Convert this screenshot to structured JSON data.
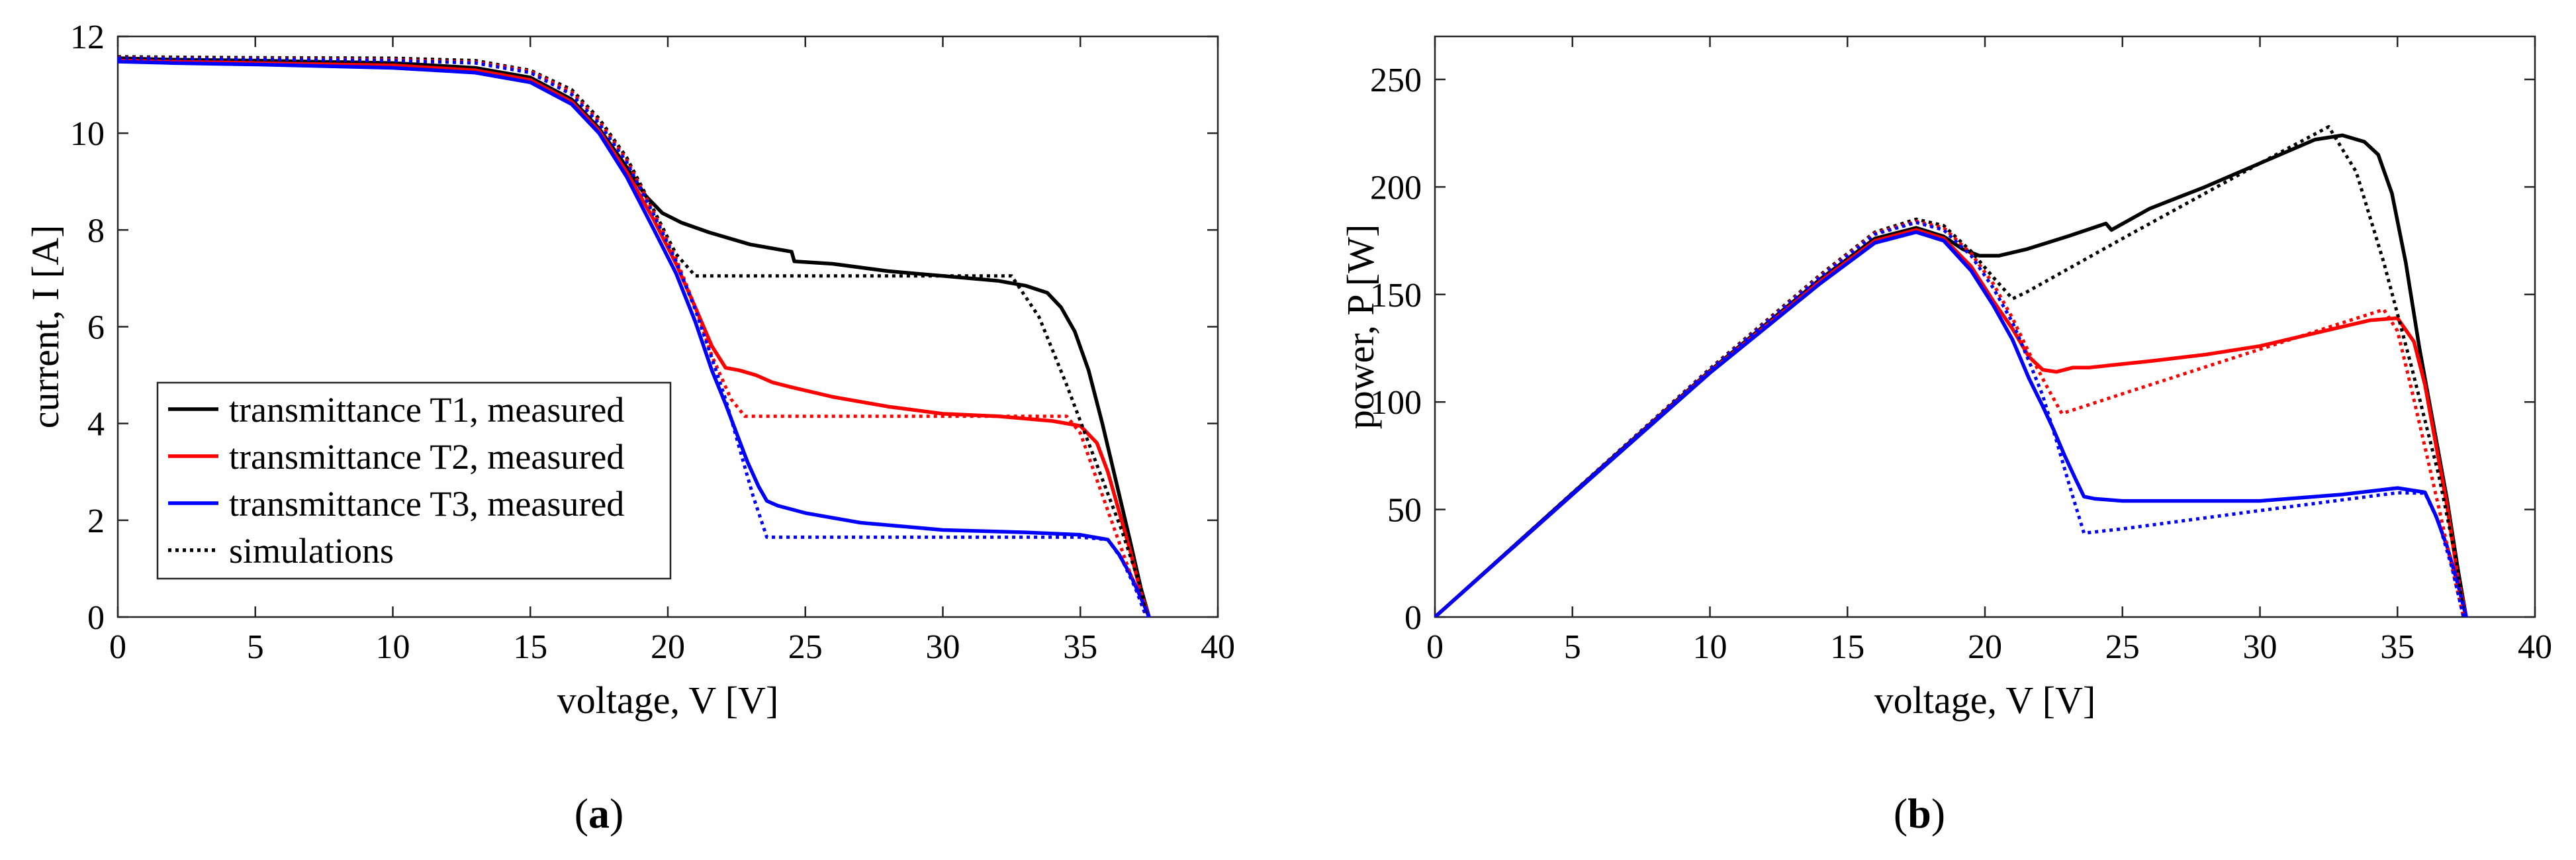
{
  "chart_data": [
    {
      "type": "line",
      "panel": "(a)",
      "panel_letter": "a",
      "xlabel": "voltage, V [V]",
      "ylabel": "current, I [A]",
      "xlim": [
        0,
        40
      ],
      "ylim": [
        0,
        12
      ],
      "xticks": [
        0,
        5,
        10,
        15,
        20,
        25,
        30,
        35,
        40
      ],
      "yticks": [
        0,
        2,
        4,
        6,
        8,
        10,
        12
      ],
      "grid": false,
      "legend_position": "lower-left",
      "legend": [
        {
          "label": "transmittance T1, measured",
          "color": "#000000",
          "style": "solid"
        },
        {
          "label": "transmittance T2, measured",
          "color": "#ff0000",
          "style": "solid"
        },
        {
          "label": "transmittance T3, measured",
          "color": "#0000ff",
          "style": "solid"
        },
        {
          "label": "simulations",
          "color": "#000000",
          "style": "dotted"
        }
      ],
      "series": [
        {
          "name": "transmittance T1, measured",
          "color": "#000000",
          "style": "solid",
          "x": [
            0,
            2,
            5,
            10,
            13,
            15,
            16.5,
            17.5,
            18.5,
            19.2,
            19.8,
            20.5,
            21.5,
            23,
            24.5,
            24.6,
            26,
            28,
            30,
            32,
            33,
            33.8,
            34.3,
            34.8,
            35.3,
            35.8,
            36.3,
            36.8,
            37.2,
            37.5
          ],
          "y": [
            11.55,
            11.52,
            11.5,
            11.45,
            11.35,
            11.15,
            10.7,
            10.1,
            9.3,
            8.7,
            8.35,
            8.15,
            7.95,
            7.7,
            7.55,
            7.35,
            7.3,
            7.15,
            7.05,
            6.95,
            6.85,
            6.7,
            6.4,
            5.9,
            5.1,
            4.0,
            2.8,
            1.6,
            0.6,
            0
          ]
        },
        {
          "name": "transmittance T2, measured",
          "color": "#ff0000",
          "style": "solid",
          "x": [
            0,
            2,
            5,
            10,
            13,
            15,
            16.5,
            17.5,
            18.5,
            19.5,
            20.3,
            21,
            21.6,
            22.1,
            22.6,
            23.2,
            23.8,
            24.5,
            26,
            28,
            30,
            32,
            34,
            35,
            35.6,
            36,
            36.4,
            36.8,
            37.2,
            37.5
          ],
          "y": [
            11.5,
            11.48,
            11.45,
            11.4,
            11.3,
            11.1,
            10.65,
            10.05,
            9.2,
            8.2,
            7.3,
            6.4,
            5.6,
            5.15,
            5.1,
            5.0,
            4.85,
            4.75,
            4.55,
            4.35,
            4.2,
            4.15,
            4.05,
            3.95,
            3.6,
            3.0,
            2.2,
            1.4,
            0.5,
            0
          ]
        },
        {
          "name": "transmittance T3, measured",
          "color": "#0000ff",
          "style": "solid",
          "x": [
            0,
            2,
            5,
            10,
            13,
            15,
            16.5,
            17.5,
            18.5,
            19.5,
            20.3,
            21,
            21.6,
            22.1,
            22.5,
            22.9,
            23.3,
            23.6,
            24,
            25,
            27,
            30,
            33,
            35,
            36,
            36.4,
            36.8,
            37.2,
            37.5
          ],
          "y": [
            11.48,
            11.45,
            11.42,
            11.35,
            11.25,
            11.05,
            10.6,
            10.0,
            9.1,
            8.0,
            7.1,
            6.1,
            5.1,
            4.4,
            3.8,
            3.2,
            2.7,
            2.4,
            2.3,
            2.15,
            1.95,
            1.8,
            1.75,
            1.7,
            1.6,
            1.3,
            0.9,
            0.4,
            0
          ]
        },
        {
          "name": "simulations",
          "color": "#000000",
          "style": "dotted",
          "x": [
            0,
            2,
            5,
            10,
            13,
            15,
            16.5,
            17.5,
            18.5,
            19.5,
            20.3,
            21,
            21.5,
            25,
            30,
            32.5,
            33.5,
            34.5,
            35.5,
            36.5,
            37.2,
            37.4
          ],
          "y": [
            11.58,
            11.57,
            11.56,
            11.55,
            11.5,
            11.3,
            10.9,
            10.3,
            9.5,
            8.4,
            7.5,
            7.05,
            7.05,
            7.05,
            7.05,
            7.05,
            6.2,
            4.8,
            3.3,
            1.8,
            0.6,
            0
          ]
        },
        {
          "name": "simulations",
          "color": "#ff0000",
          "style": "dotted",
          "x": [
            0,
            2,
            5,
            10,
            13,
            15,
            16.5,
            17.5,
            18.5,
            19.5,
            20.3,
            21,
            21.6,
            22.3,
            22.8,
            25,
            30,
            34.5,
            35,
            35.5,
            36,
            36.5,
            37,
            37.4
          ],
          "y": [
            11.56,
            11.55,
            11.54,
            11.52,
            11.47,
            11.28,
            10.85,
            10.25,
            9.45,
            8.35,
            7.4,
            6.4,
            5.4,
            4.5,
            4.15,
            4.15,
            4.15,
            4.15,
            3.8,
            3.0,
            2.2,
            1.4,
            0.6,
            0
          ]
        },
        {
          "name": "simulations",
          "color": "#0000ff",
          "style": "dotted",
          "x": [
            0,
            2,
            5,
            10,
            13,
            15,
            16.5,
            17.5,
            18.5,
            19.5,
            20.3,
            21,
            21.6,
            22.1,
            22.6,
            23.1,
            23.6,
            25,
            30,
            35,
            36,
            36.5,
            37,
            37.4
          ],
          "y": [
            11.55,
            11.54,
            11.53,
            11.5,
            11.45,
            11.25,
            10.8,
            10.2,
            9.4,
            8.3,
            7.35,
            6.35,
            5.35,
            4.5,
            3.5,
            2.5,
            1.65,
            1.65,
            1.65,
            1.65,
            1.6,
            1.2,
            0.6,
            0
          ]
        }
      ]
    },
    {
      "type": "line",
      "panel": "(b)",
      "panel_letter": "b",
      "xlabel": "voltage, V [V]",
      "ylabel": "power, P [W]",
      "xlim": [
        0,
        40
      ],
      "ylim": [
        0,
        270
      ],
      "xticks": [
        0,
        5,
        10,
        15,
        20,
        25,
        30,
        35,
        40
      ],
      "yticks": [
        0,
        50,
        100,
        150,
        200,
        250
      ],
      "grid": false,
      "series": [
        {
          "name": "transmittance T1, measured",
          "color": "#000000",
          "style": "solid",
          "x": [
            0,
            5,
            10,
            14,
            16,
            17.5,
            18.5,
            19.2,
            19.8,
            20.5,
            21.5,
            23,
            24.4,
            24.6,
            26,
            28,
            30,
            32,
            33,
            33.8,
            34.3,
            34.8,
            35.3,
            35.8,
            36.3,
            36.8,
            37.2,
            37.5
          ],
          "y": [
            0,
            57.5,
            114.5,
            157,
            176,
            181,
            177,
            171,
            168,
            168,
            171,
            177,
            183,
            180,
            190,
            200,
            211,
            222,
            224,
            221,
            215,
            197,
            165,
            125,
            90,
            55,
            22,
            0
          ]
        },
        {
          "name": "transmittance T2, measured",
          "color": "#ff0000",
          "style": "solid",
          "x": [
            0,
            5,
            10,
            14,
            16,
            17.5,
            18.5,
            19.5,
            20.3,
            21,
            21.6,
            22.1,
            22.6,
            23.2,
            23.8,
            24.5,
            26,
            28,
            30,
            32,
            34,
            35,
            35.6,
            36,
            36.4,
            36.8,
            37.2,
            37.5
          ],
          "y": [
            0,
            57,
            114,
            156,
            175,
            180,
            176,
            163,
            147,
            134,
            121,
            115,
            114,
            116,
            116,
            117,
            119,
            122,
            126,
            132,
            138,
            139,
            128,
            108,
            80,
            52,
            18,
            0
          ]
        },
        {
          "name": "transmittance T3, measured",
          "color": "#0000ff",
          "style": "solid",
          "x": [
            0,
            5,
            10,
            14,
            16,
            17.5,
            18.5,
            19.5,
            20.3,
            21,
            21.6,
            22.1,
            22.5,
            22.9,
            23.3,
            23.6,
            24,
            25,
            27,
            30,
            33,
            35,
            36,
            36.4,
            36.8,
            37.2,
            37.5
          ],
          "y": [
            0,
            57,
            113.5,
            155,
            174,
            179,
            175,
            161,
            145,
            129,
            111,
            98,
            87,
            75,
            64,
            56,
            55,
            54,
            54,
            54,
            57,
            60,
            58,
            47,
            33,
            15,
            0
          ]
        },
        {
          "name": "simulations",
          "color": "#000000",
          "style": "dotted",
          "x": [
            0,
            5,
            10,
            14,
            16,
            17.5,
            18.5,
            19.5,
            20.3,
            21,
            21.5,
            25,
            30,
            32.5,
            33.5,
            34.5,
            35.5,
            36.5,
            37.2,
            37.4
          ],
          "y": [
            0,
            57.8,
            115.5,
            159,
            179,
            185,
            182,
            170,
            158,
            148,
            151,
            176,
            211,
            228,
            207,
            165,
            117,
            66,
            22,
            0
          ]
        },
        {
          "name": "simulations",
          "color": "#ff0000",
          "style": "dotted",
          "x": [
            0,
            5,
            10,
            14,
            16,
            17.5,
            18.5,
            19.5,
            20.3,
            21,
            21.6,
            22.3,
            22.8,
            25,
            30,
            34.5,
            35,
            35.5,
            36,
            36.5,
            37,
            37.4
          ],
          "y": [
            0,
            57.7,
            115.2,
            158.5,
            178.5,
            184,
            181,
            169,
            155,
            139,
            123,
            106,
            94.6,
            103.8,
            124.5,
            143,
            133,
            106.5,
            79,
            51,
            22,
            0
          ]
        },
        {
          "name": "simulations",
          "color": "#0000ff",
          "style": "dotted",
          "x": [
            0,
            5,
            10,
            14,
            16,
            17.5,
            18.5,
            19.5,
            20.3,
            21,
            21.6,
            22.1,
            22.6,
            23.1,
            23.6,
            25,
            30,
            35,
            36,
            36.5,
            37,
            37.4
          ],
          "y": [
            0,
            57.6,
            115,
            158,
            178,
            183.5,
            180,
            168,
            153,
            137,
            119,
            103,
            82,
            60,
            39,
            41,
            49.5,
            57.8,
            57.6,
            44,
            22,
            0
          ]
        }
      ]
    }
  ]
}
